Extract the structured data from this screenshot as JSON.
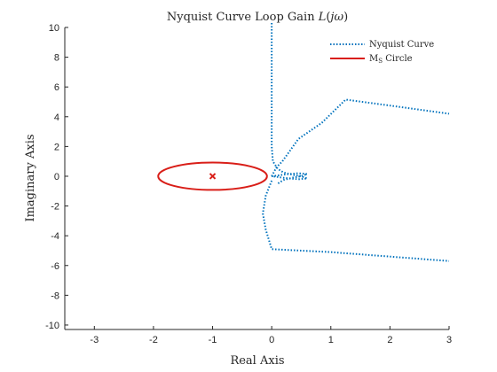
{
  "chart_data": {
    "type": "line",
    "title": "Nyquist Curve Loop Gain L(jω)",
    "title_parts": {
      "main": "Nyquist Curve Loop Gain ",
      "fn": "L",
      "open": "(",
      "arg": "jω",
      "close": ")"
    },
    "xlabel": "Real Axis",
    "ylabel": "Imaginary Axis",
    "xlim": [
      -3.5,
      3
    ],
    "ylim": [
      -10.3,
      10
    ],
    "xticks": [
      -3,
      -2,
      -1,
      0,
      1,
      2,
      3
    ],
    "yticks": [
      -10,
      -8,
      -6,
      -4,
      -2,
      0,
      2,
      4,
      6,
      8,
      10
    ],
    "grid": false,
    "legend_position": "top-right",
    "legend": [
      {
        "key": "nyquist",
        "label": "Nyquist Curve"
      },
      {
        "key": "ms",
        "label": "M",
        "sub": "S",
        "rest": " Circle"
      }
    ],
    "series": [
      {
        "key": "nyquist",
        "name": "Nyquist Curve",
        "color": "#0072BD",
        "style": "dotted",
        "points": [
          [
            0,
            10.3
          ],
          [
            0,
            4.0
          ],
          [
            0,
            2.0
          ],
          [
            0.02,
            1.0
          ],
          [
            0.1,
            0.5
          ],
          [
            0.2,
            0.25
          ],
          [
            0.35,
            0.1
          ],
          [
            0.5,
            0.0
          ],
          [
            0.6,
            -0.15
          ],
          [
            0.45,
            -0.2
          ],
          [
            0.3,
            -0.15
          ],
          [
            0.15,
            -0.08
          ],
          [
            0.05,
            -0.02
          ],
          [
            0,
            0
          ]
        ]
      },
      {
        "key": "nyquist_mirror",
        "name": "",
        "color": "#0072BD",
        "style": "dotted",
        "points": [
          [
            0,
            0
          ],
          [
            0.05,
            0.02
          ],
          [
            0.15,
            0.08
          ],
          [
            0.3,
            0.15
          ],
          [
            0.45,
            0.2
          ],
          [
            0.6,
            0.15
          ],
          [
            0.5,
            0.0
          ],
          [
            0.35,
            -0.1
          ],
          [
            0.2,
            -0.25
          ],
          [
            0.1,
            -0.5
          ]
        ]
      },
      {
        "key": "nyquist_upper",
        "name": "",
        "color": "#0072BD",
        "style": "dotted",
        "points": [
          [
            0.0,
            0.0
          ],
          [
            0.08,
            0.6
          ],
          [
            0.18,
            1.0
          ],
          [
            0.45,
            2.5
          ],
          [
            0.85,
            3.6
          ],
          [
            1.25,
            5.15
          ],
          [
            2.0,
            4.75
          ],
          [
            3.0,
            4.2
          ]
        ]
      },
      {
        "key": "nyquist_lower",
        "name": "",
        "color": "#0072BD",
        "style": "dotted",
        "points": [
          [
            0.0,
            -0.3
          ],
          [
            -0.1,
            -1.3
          ],
          [
            -0.15,
            -2.5
          ],
          [
            -0.1,
            -3.6
          ],
          [
            0.0,
            -4.9
          ],
          [
            1.0,
            -5.1
          ],
          [
            2.0,
            -5.4
          ],
          [
            3.0,
            -5.7
          ]
        ]
      },
      {
        "key": "ms",
        "name": "Ms Circle",
        "color": "#D91E18",
        "style": "solid",
        "center": [
          -1,
          0
        ],
        "radius": 0.92
      }
    ],
    "markers": [
      {
        "key": "critical_point",
        "x": -1,
        "y": 0,
        "symbol": "x",
        "color": "#D91E18"
      }
    ]
  }
}
